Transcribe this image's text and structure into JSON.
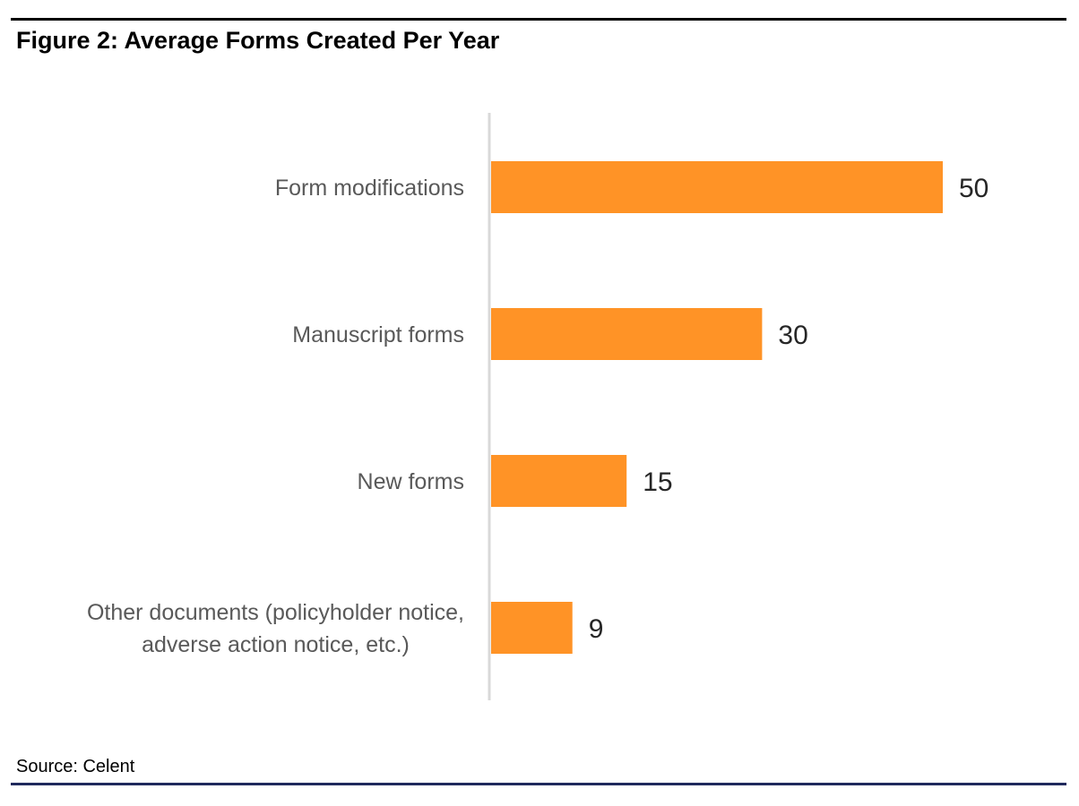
{
  "figure": {
    "title": "Figure 2: Average Forms Created Per Year",
    "source": "Source: Celent"
  },
  "chart_data": {
    "type": "bar",
    "orientation": "horizontal",
    "title": "",
    "xlabel": "",
    "ylabel": "",
    "categories": [
      [
        "Form modifications"
      ],
      [
        "Manuscript forms"
      ],
      [
        "New forms"
      ],
      [
        "Other documents (policyholder notice,",
        "adverse action notice, etc.)"
      ]
    ],
    "values": [
      50,
      30,
      15,
      9
    ],
    "data_labels": [
      "50",
      "30",
      "15",
      "9"
    ],
    "xlim": [
      0,
      50
    ],
    "grid": false,
    "legend": "none",
    "colors": {
      "bar": "#ff9326",
      "axis": "#d9d9d9",
      "category_text": "#595959",
      "value_text": "#262626"
    }
  }
}
